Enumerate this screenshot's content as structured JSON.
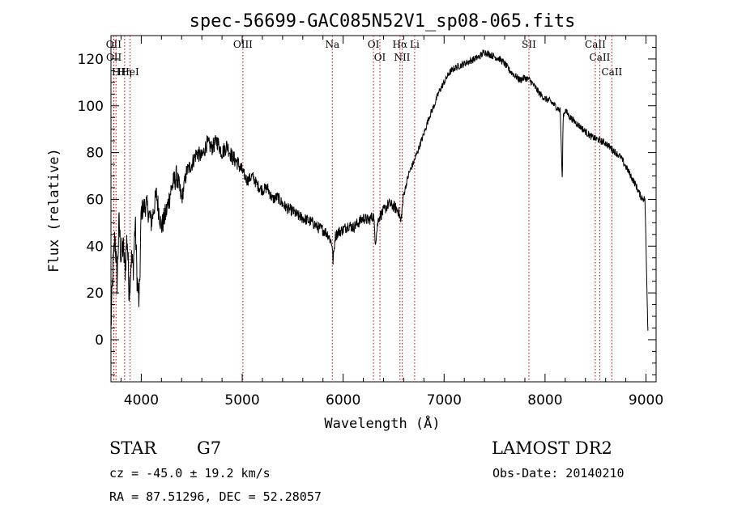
{
  "chart_data": {
    "type": "line",
    "title": "spec-56699-GAC085N52V1_sp08-065.fits",
    "xlabel": "Wavelength (Å)",
    "ylabel": "Flux (relative)",
    "xlim": [
      3700,
      9100
    ],
    "ylim": [
      -18,
      130
    ],
    "x_ticks": [
      4000,
      5000,
      6000,
      7000,
      8000,
      9000
    ],
    "y_ticks": [
      0,
      20,
      40,
      60,
      80,
      100,
      120
    ],
    "grid": false,
    "line_color": "#000000",
    "marker_color": "#c00000",
    "series": [
      {
        "x": [
          3700,
          3720,
          3740,
          3760,
          3780,
          3800,
          3820,
          3840,
          3860,
          3880,
          3900,
          3920,
          3940,
          3960,
          3980,
          4000,
          4050,
          4100,
          4150,
          4200,
          4250,
          4300,
          4350,
          4400,
          4450,
          4500,
          4550,
          4600,
          4650,
          4700,
          4750,
          4800,
          4850,
          4900,
          4950,
          5000,
          5050,
          5100,
          5150,
          5200,
          5250,
          5300,
          5350,
          5400,
          5450,
          5500,
          5550,
          5600,
          5650,
          5700,
          5750,
          5800,
          5850,
          5890,
          5900,
          5920,
          5950,
          6000,
          6050,
          6100,
          6150,
          6200,
          6250,
          6300,
          6320,
          6350,
          6400,
          6450,
          6500,
          6550,
          6570,
          6600,
          6650,
          6700,
          6750,
          6800,
          6850,
          6900,
          6950,
          7000,
          7050,
          7100,
          7150,
          7200,
          7250,
          7300,
          7350,
          7400,
          7450,
          7500,
          7550,
          7600,
          7650,
          7700,
          7750,
          7800,
          7850,
          7900,
          7950,
          8000,
          8050,
          8100,
          8150,
          8160,
          8170,
          8180,
          8190,
          8200,
          8250,
          8300,
          8350,
          8400,
          8450,
          8500,
          8550,
          8600,
          8650,
          8700,
          8750,
          8800,
          8850,
          8900,
          8950,
          8990,
          9000,
          9010,
          9020
        ],
        "y": [
          5,
          30,
          45,
          25,
          50,
          35,
          40,
          30,
          45,
          20,
          35,
          30,
          50,
          25,
          15,
          55,
          58,
          50,
          62,
          48,
          55,
          65,
          70,
          60,
          72,
          75,
          80,
          78,
          84,
          82,
          85,
          80,
          83,
          78,
          76,
          72,
          68,
          70,
          66,
          64,
          65,
          60,
          61,
          58,
          56,
          55,
          53,
          52,
          51,
          50,
          48,
          47,
          45,
          41,
          33,
          44,
          46,
          47,
          49,
          48,
          50,
          52,
          51,
          53,
          42,
          52,
          55,
          58,
          57,
          55,
          50,
          62,
          71,
          76,
          82,
          88,
          95,
          100,
          106,
          110,
          114,
          116,
          117,
          118,
          119,
          120,
          121,
          123,
          122,
          121,
          120,
          118,
          115,
          113,
          111,
          112,
          111,
          108,
          105,
          103,
          102,
          100,
          98,
          84,
          68,
          96,
          97,
          98,
          95,
          93,
          91,
          89,
          87,
          86,
          85,
          84,
          82,
          80,
          78,
          74,
          70,
          66,
          61,
          60,
          40,
          20,
          2
        ]
      }
    ],
    "markers": [
      {
        "label": "Hη",
        "x": 3835
      },
      {
        "label": "OII",
        "x": 3727
      },
      {
        "label": "OII",
        "x": 3729
      },
      {
        "label": "H",
        "x": 3750
      },
      {
        "label": "HeI",
        "x": 3889
      },
      {
        "label": "OIII",
        "x": 5007
      },
      {
        "label": "Na",
        "x": 5893
      },
      {
        "label": "OI",
        "x": 6300
      },
      {
        "label": "OI",
        "x": 6364
      },
      {
        "label": "Hα",
        "x": 6563
      },
      {
        "label": "NII",
        "x": 6584
      },
      {
        "label": "Li",
        "x": 6708
      },
      {
        "label": "SII",
        "x": 7840
      },
      {
        "label": "CaII",
        "x": 8498
      },
      {
        "label": "CaII",
        "x": 8542
      },
      {
        "label": "CaII",
        "x": 8662
      }
    ]
  },
  "info": {
    "object_type": "STAR",
    "subclass": "G7",
    "survey": "LAMOST DR2",
    "cz": "cz = -45.0 ± 19.2 km/s",
    "obs_date": "Obs-Date: 20140210",
    "coords": "RA =  87.51296, DEC =  52.28057"
  }
}
